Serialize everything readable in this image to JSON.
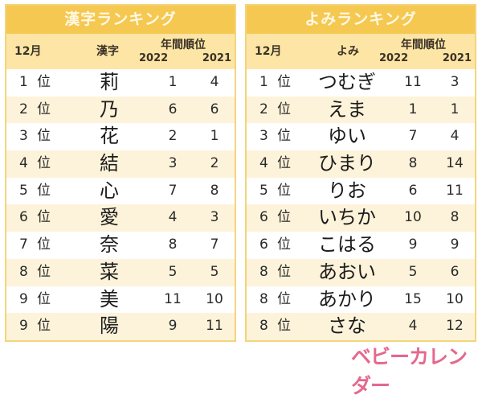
{
  "kanji_table": {
    "title": "漢字ランキング",
    "header": {
      "month": "12月",
      "name": "漢字",
      "annual": "年間順位",
      "year1": "2022",
      "year2": "2021"
    },
    "rank_unit": "位",
    "rows": [
      {
        "rank": "1",
        "name": "莉",
        "y2022": "1",
        "y2021": "4"
      },
      {
        "rank": "2",
        "name": "乃",
        "y2022": "6",
        "y2021": "6"
      },
      {
        "rank": "3",
        "name": "花",
        "y2022": "2",
        "y2021": "1"
      },
      {
        "rank": "4",
        "name": "結",
        "y2022": "3",
        "y2021": "2"
      },
      {
        "rank": "5",
        "name": "心",
        "y2022": "7",
        "y2021": "8"
      },
      {
        "rank": "6",
        "name": "愛",
        "y2022": "4",
        "y2021": "3"
      },
      {
        "rank": "7",
        "name": "奈",
        "y2022": "8",
        "y2021": "7"
      },
      {
        "rank": "8",
        "name": "菜",
        "y2022": "5",
        "y2021": "5"
      },
      {
        "rank": "9",
        "name": "美",
        "y2022": "11",
        "y2021": "10"
      },
      {
        "rank": "9",
        "name": "陽",
        "y2022": "9",
        "y2021": "11"
      }
    ]
  },
  "yomi_table": {
    "title": "よみランキング",
    "header": {
      "month": "12月",
      "name": "よみ",
      "annual": "年間順位",
      "year1": "2022",
      "year2": "2021"
    },
    "rank_unit": "位",
    "rows": [
      {
        "rank": "1",
        "name": "つむぎ",
        "y2022": "11",
        "y2021": "3"
      },
      {
        "rank": "2",
        "name": "えま",
        "y2022": "1",
        "y2021": "1"
      },
      {
        "rank": "3",
        "name": "ゆい",
        "y2022": "7",
        "y2021": "4"
      },
      {
        "rank": "4",
        "name": "ひまり",
        "y2022": "8",
        "y2021": "14"
      },
      {
        "rank": "5",
        "name": "りお",
        "y2022": "6",
        "y2021": "11"
      },
      {
        "rank": "6",
        "name": "いちか",
        "y2022": "10",
        "y2021": "8"
      },
      {
        "rank": "6",
        "name": "こはる",
        "y2022": "9",
        "y2021": "9"
      },
      {
        "rank": "8",
        "name": "あおい",
        "y2022": "5",
        "y2021": "6"
      },
      {
        "rank": "8",
        "name": "あかり",
        "y2022": "15",
        "y2021": "10"
      },
      {
        "rank": "8",
        "name": "さな",
        "y2022": "4",
        "y2021": "12"
      }
    ]
  },
  "logo": {
    "text": "ベビーカレンダー",
    "color": "#e4698f"
  },
  "colors": {
    "title_bg": "#f5c851",
    "subhead_bg": "#fde5a6",
    "row_alt_bg": "#fdf3da",
    "border": "#f3d57a"
  }
}
